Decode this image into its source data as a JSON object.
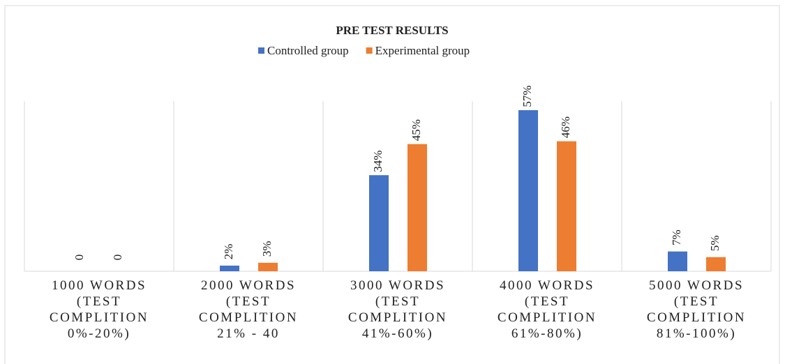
{
  "chart_data": {
    "type": "bar",
    "title": "PRE TEST RESULTS",
    "categories": [
      "1000 WORDS (TEST COMPLITION 0%-20%)",
      "2000 WORDS (TEST COMPLITION 21% - 40",
      "3000 WORDS (TEST COMPLITION 41%-60%)",
      "4000 WORDS (TEST COMPLITION 61%-80%)",
      "5000 WORDS (TEST COMPLITION 81%-100%)"
    ],
    "series": [
      {
        "name": "Controlled group",
        "color": "#4472c4",
        "values": [
          0,
          2,
          34,
          57,
          7
        ],
        "value_labels": [
          "0",
          "2%",
          "34%",
          "57%",
          "7%"
        ]
      },
      {
        "name": "Experimental group",
        "color": "#ed7d31",
        "values": [
          0,
          3,
          45,
          46,
          5
        ],
        "value_labels": [
          "0",
          "3%",
          "45%",
          "46%",
          "5%"
        ]
      }
    ],
    "legend": "top"
  }
}
